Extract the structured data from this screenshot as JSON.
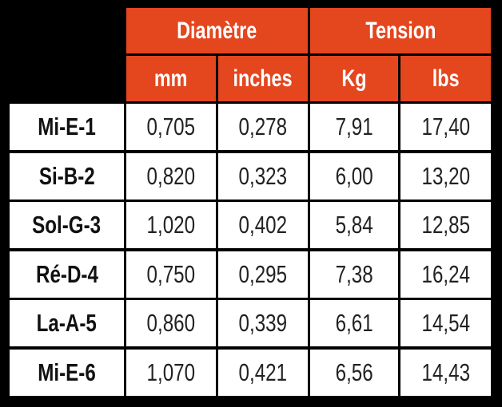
{
  "header": {
    "groups": [
      "Diamètre",
      "Tension"
    ],
    "units": [
      "mm",
      "inches",
      "Kg",
      "lbs"
    ]
  },
  "table": {
    "rows": [
      [
        "Mi-E-1",
        "0,705",
        "0,278",
        "7,91",
        "17,40"
      ],
      [
        "Si-B-2",
        "0,820",
        "0,323",
        "6,00",
        "13,20"
      ],
      [
        "Sol-G-3",
        "1,020",
        "0,402",
        "5,84",
        "12,85"
      ],
      [
        "Ré-D-4",
        "0,750",
        "0,295",
        "7,38",
        "16,24"
      ],
      [
        "La-A-5",
        "0,860",
        "0,339",
        "6,61",
        "14,54"
      ],
      [
        "Mi-E-6",
        "1,070",
        "0,421",
        "6,56",
        "14,43"
      ]
    ]
  }
}
